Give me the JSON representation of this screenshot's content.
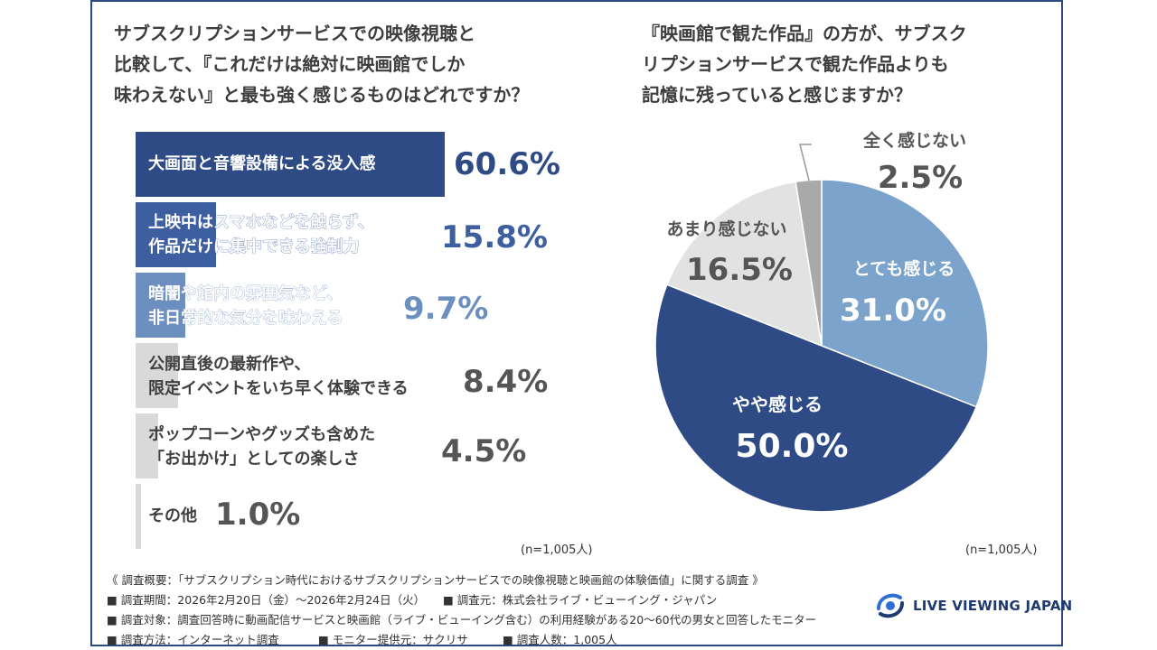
{
  "left_chart": {
    "title_lines": [
      "サブスクリプションサービスでの映像視聴と",
      "比較して、『これだけは絶対に映画館でしか",
      "味わえない』と最も強く感じるものはどれですか？"
    ],
    "n_label": "(n=1,005人)"
  },
  "right_chart": {
    "title_lines": [
      "『映画館で観た作品』の方が、サブスク",
      "リプションサービスで観た作品よりも",
      "記憶に残っていると感じますか？"
    ],
    "n_label": "(n=1,005人)"
  },
  "chart_data": [
    {
      "type": "bar",
      "orientation": "horizontal",
      "categories": [
        [
          "大画面と音響設備による没入感"
        ],
        [
          "上映中はスマホなどを触らず、",
          "作品だけに集中できる強制力"
        ],
        [
          "暗闇や館内の雰囲気など、",
          "非日常的な気分を味わえる"
        ],
        [
          "公開直後の最新作や、",
          "限定イベントをいち早く体験できる"
        ],
        [
          "ポップコーンやグッズも含めた",
          "「お出かけ」としての楽しさ"
        ],
        [
          "その他"
        ]
      ],
      "values": [
        60.6,
        15.8,
        9.7,
        8.4,
        4.5,
        1.0
      ],
      "value_labels": [
        "60.6%",
        "15.8%",
        "9.7%",
        "8.4%",
        "4.5%",
        "1.0%"
      ],
      "colors": [
        "#2e4b86",
        "#3d5fa0",
        "#6d8fc0",
        "#d9d9d9",
        "#d9d9d9",
        "#d9d9d9"
      ],
      "xlim": [
        0,
        60.6
      ]
    },
    {
      "type": "pie",
      "labels": [
        "とても感じる",
        "やや感じる",
        "あまり感じない",
        "全く感じない"
      ],
      "values": [
        31.0,
        50.0,
        16.5,
        2.5
      ],
      "value_labels": [
        "31.0%",
        "50.0%",
        "16.5%",
        "2.5%"
      ],
      "colors": [
        "#7ba3cb",
        "#2e4b86",
        "#e2e2e2",
        "#a9a9a9"
      ],
      "text_colors": [
        "#ffffff",
        "#ffffff",
        "#555555",
        "#555555"
      ]
    }
  ],
  "footer": {
    "line1": "《 調査概要：「サブスクリプション時代におけるサブスクリプションサービスでの映像視聴と映画館の体験価値」に関する調査 》",
    "line2a": "■ 調査期間：2026年2月20日（金）～2026年2月24日（火）",
    "line2b": "■ 調査元：株式会社ライブ・ビューイング・ジャパン",
    "line3": "■ 調査対象：調査回答時に動画配信サービスと映画館（ライブ・ビューイング含む）の利用経験がある20～60代の男女と回答したモニター",
    "line4a": "■ 調査方法：インターネット調査",
    "line4b": "■ モニター提供元：サクリサ",
    "line4c": "■ 調査人数：1,005人"
  },
  "logo": {
    "text": "LIVE VIEWING JAPAN",
    "icon": "live-viewing-logo-icon"
  }
}
